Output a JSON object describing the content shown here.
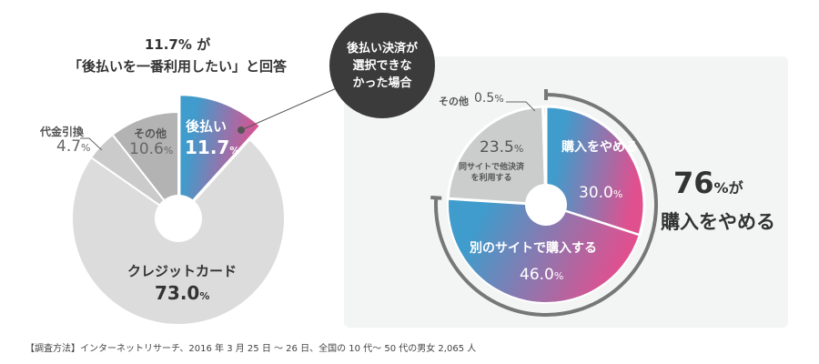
{
  "headline": {
    "line1": "11.7% が",
    "line2": "「後払いを一番利用したい」と回答"
  },
  "bubble": {
    "line1": "後払い決済が",
    "line2": "選択できな",
    "line3": "かった場合"
  },
  "result": {
    "value": "76",
    "unit": "%が",
    "label": "購入をやめる"
  },
  "note": "【調査方法】インターネットリサーチ、2016 年 3 月 25 日 〜 26 日、全国の 10 代〜 50 代の男女 2,065 人",
  "colors": {
    "grad_start": "#3f9ccc",
    "grad_end": "#e0508f",
    "credit": "#dcdcdc",
    "cod": "#cbcbcb",
    "other": "#b3b3b3",
    "ring": "#777777",
    "panel": "#f3f4f4",
    "bubble": "#3b3b3b"
  },
  "chart_data": [
    {
      "type": "pie",
      "title": "11.7% が「後払いを一番利用したい」と回答",
      "slices": [
        {
          "label": "後払い",
          "value": 11.7,
          "pct": "11.7",
          "highlight": true
        },
        {
          "label": "クレジットカード",
          "value": 73.0,
          "pct": "73.0"
        },
        {
          "label": "代金引換",
          "value": 4.7,
          "pct": "4.7"
        },
        {
          "label": "その他",
          "value": 10.6,
          "pct": "10.6"
        }
      ]
    },
    {
      "type": "pie",
      "title": "後払い決済が選択できなかった場合",
      "slices": [
        {
          "label": "購入をやめる",
          "value": 30.0,
          "pct": "30.0"
        },
        {
          "label": "別のサイトで購入する",
          "value": 46.0,
          "pct": "46.0"
        },
        {
          "label": "同サイトで他決済を利用する",
          "value": 23.5,
          "pct": "23.5"
        },
        {
          "label": "その他",
          "value": 0.5,
          "pct": "0.5"
        }
      ],
      "bracket_total": 76
    }
  ],
  "pct_sign": "%"
}
